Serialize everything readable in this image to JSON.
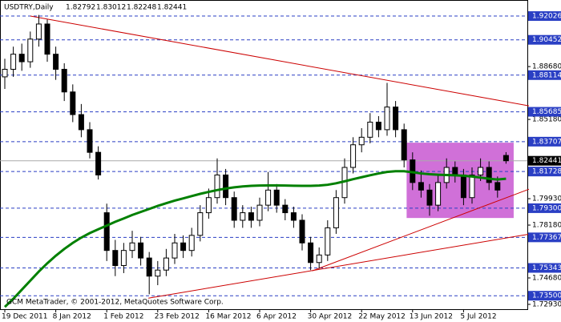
{
  "chart_data": {
    "type": "candlestick",
    "title": "USDTRY,Daily",
    "header_ohlc": [
      1.82792,
      1.83012,
      1.82248,
      1.82441
    ],
    "footer": "GCM MetaTrader, © 2001-2012, MetaQuotes Software Corp.",
    "categories": [
      "19 Dec 2011",
      null,
      null,
      null,
      null,
      null,
      "8 Jan 2012",
      null,
      null,
      null,
      null,
      null,
      "1 Feb 2012",
      null,
      null,
      null,
      null,
      null,
      "23 Feb 2012",
      null,
      null,
      null,
      null,
      null,
      "16 Mar 2012",
      null,
      null,
      null,
      null,
      null,
      "6 Apr 2012",
      null,
      null,
      null,
      null,
      null,
      "30 Apr 2012",
      null,
      null,
      null,
      null,
      null,
      "22 May 2012",
      null,
      null,
      null,
      null,
      null,
      "13 Jun 2012",
      null,
      null,
      null,
      null,
      null,
      "5 Jul 2012",
      null,
      null,
      null,
      null,
      null
    ],
    "ohlc": [
      [
        1.88,
        1.892,
        1.872,
        1.885
      ],
      [
        1.885,
        1.9,
        1.88,
        1.895
      ],
      [
        1.895,
        1.902,
        1.884,
        1.89
      ],
      [
        1.89,
        1.91,
        1.886,
        1.905
      ],
      [
        1.905,
        1.921,
        1.9,
        1.915
      ],
      [
        1.915,
        1.918,
        1.89,
        1.895
      ],
      [
        1.895,
        1.9,
        1.878,
        1.885
      ],
      [
        1.885,
        1.889,
        1.864,
        1.87
      ],
      [
        1.87,
        1.875,
        1.85,
        1.855
      ],
      [
        1.855,
        1.862,
        1.84,
        1.845
      ],
      [
        1.845,
        1.85,
        1.826,
        1.83
      ],
      [
        1.83,
        1.834,
        1.812,
        1.815
      ],
      [
        1.79,
        1.796,
        1.758,
        1.765
      ],
      [
        1.765,
        1.772,
        1.748,
        1.755
      ],
      [
        1.755,
        1.77,
        1.75,
        1.765
      ],
      [
        1.765,
        1.778,
        1.76,
        1.77
      ],
      [
        1.77,
        1.774,
        1.755,
        1.76
      ],
      [
        1.76,
        1.764,
        1.736,
        1.748
      ],
      [
        1.748,
        1.758,
        1.742,
        1.752
      ],
      [
        1.752,
        1.766,
        1.748,
        1.76
      ],
      [
        1.76,
        1.776,
        1.756,
        1.77
      ],
      [
        1.77,
        1.775,
        1.76,
        1.765
      ],
      [
        1.765,
        1.78,
        1.761,
        1.775
      ],
      [
        1.775,
        1.795,
        1.771,
        1.79
      ],
      [
        1.79,
        1.806,
        1.786,
        1.8
      ],
      [
        1.8,
        1.826,
        1.796,
        1.815
      ],
      [
        1.815,
        1.819,
        1.795,
        1.8
      ],
      [
        1.8,
        1.804,
        1.78,
        1.785
      ],
      [
        1.785,
        1.795,
        1.78,
        1.79
      ],
      [
        1.79,
        1.794,
        1.78,
        1.785
      ],
      [
        1.785,
        1.8,
        1.781,
        1.795
      ],
      [
        1.795,
        1.817,
        1.791,
        1.805
      ],
      [
        1.805,
        1.809,
        1.79,
        1.795
      ],
      [
        1.795,
        1.799,
        1.785,
        1.79
      ],
      [
        1.79,
        1.794,
        1.78,
        1.785
      ],
      [
        1.785,
        1.789,
        1.765,
        1.77
      ],
      [
        1.77,
        1.774,
        1.752,
        1.757
      ],
      [
        1.757,
        1.767,
        1.753,
        1.762
      ],
      [
        1.762,
        1.785,
        1.758,
        1.78
      ],
      [
        1.78,
        1.805,
        1.776,
        1.8
      ],
      [
        1.8,
        1.826,
        1.796,
        1.82
      ],
      [
        1.82,
        1.84,
        1.816,
        1.835
      ],
      [
        1.835,
        1.846,
        1.83,
        1.84
      ],
      [
        1.84,
        1.856,
        1.836,
        1.85
      ],
      [
        1.85,
        1.854,
        1.84,
        1.845
      ],
      [
        1.845,
        1.876,
        1.841,
        1.86
      ],
      [
        1.86,
        1.864,
        1.84,
        1.845
      ],
      [
        1.845,
        1.849,
        1.82,
        1.825
      ],
      [
        1.825,
        1.83,
        1.805,
        1.81
      ],
      [
        1.81,
        1.818,
        1.8,
        1.805
      ],
      [
        1.805,
        1.809,
        1.788,
        1.795
      ],
      [
        1.795,
        1.815,
        1.791,
        1.81
      ],
      [
        1.81,
        1.826,
        1.806,
        1.82
      ],
      [
        1.82,
        1.824,
        1.81,
        1.815
      ],
      [
        1.815,
        1.819,
        1.795,
        1.8
      ],
      [
        1.8,
        1.82,
        1.796,
        1.815
      ],
      [
        1.815,
        1.826,
        1.811,
        1.82
      ],
      [
        1.82,
        1.824,
        1.805,
        1.81
      ],
      [
        1.81,
        1.814,
        1.8,
        1.805
      ],
      [
        1.82792,
        1.83012,
        1.82248,
        1.82441
      ]
    ],
    "bull_color": "#ffffff",
    "bear_color": "#000000",
    "moving_average": {
      "color": "#008000",
      "values": [
        1.7276,
        1.733,
        1.739,
        1.745,
        1.751,
        1.7565,
        1.7615,
        1.766,
        1.77,
        1.7735,
        1.7765,
        1.779,
        1.7815,
        1.784,
        1.7862,
        1.7885,
        1.7905,
        1.7925,
        1.7945,
        1.7963,
        1.798,
        1.7995,
        1.801,
        1.8025,
        1.8038,
        1.805,
        1.806,
        1.8068,
        1.8074,
        1.8078,
        1.808,
        1.8081,
        1.8081,
        1.808,
        1.8079,
        1.8078,
        1.8078,
        1.808,
        1.8085,
        1.8095,
        1.8108,
        1.8122,
        1.8135,
        1.8148,
        1.816,
        1.817,
        1.8175,
        1.8175,
        1.8168,
        1.816,
        1.8155,
        1.8152,
        1.815,
        1.8148,
        1.8145,
        1.814,
        1.8133,
        1.8125,
        1.812,
        1.8125
      ]
    },
    "trendlines": [
      {
        "color": "#cc0000",
        "x": [
          3.0,
          61.7
        ],
        "y": [
          1.9203,
          1.8608
        ]
      },
      {
        "color": "#cc0000",
        "x": [
          36.2,
          61.7
        ],
        "y": [
          1.7515,
          1.8056
        ]
      },
      {
        "color": "#cc0000",
        "x": [
          16.9,
          61.7
        ],
        "y": [
          1.7334,
          1.7758
        ]
      }
    ],
    "rectangle": {
      "color": "#d070d8",
      "x": [
        47.3,
        59.9
      ],
      "y": [
        1.7865,
        1.8364
      ]
    },
    "ylim": [
      1.7261,
      1.9309
    ],
    "yticks": [
      {
        "value": 1.8868,
        "label": "1.88680"
      },
      {
        "value": 1.8518,
        "label": "1.85180"
      },
      {
        "value": 1.7993,
        "label": "1.79930"
      },
      {
        "value": 1.7818,
        "label": "1.78180"
      },
      {
        "value": 1.7468,
        "label": "1.74680"
      },
      {
        "value": 1.7293,
        "label": "1.72930"
      }
    ],
    "levels": [
      1.92026,
      1.90452,
      {
        "value": 1.88114,
        "label": "1.88114"
      },
      1.85685,
      1.83707,
      1.81728,
      {
        "value": 1.793,
        "label": "1.79300"
      },
      1.77367,
      1.75343,
      {
        "value": 1.735,
        "label": "1.73500"
      }
    ],
    "level_color": "#2a3fc4",
    "current_price": 1.82441
  }
}
